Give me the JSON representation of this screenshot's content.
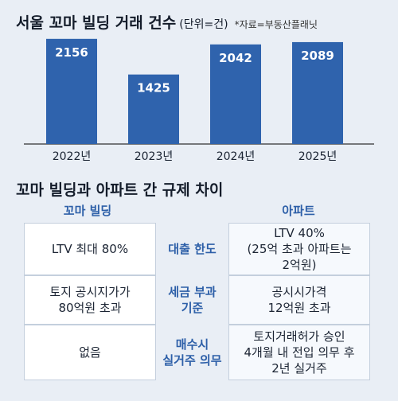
{
  "title": {
    "main": "서울 꼬마 빌딩 거래 건수",
    "unit": "(단위=건)",
    "source": "*자료=부동산플래닛"
  },
  "chart_data": {
    "type": "bar",
    "categories": [
      "2022년",
      "2023년",
      "2024년",
      "2025년"
    ],
    "values": [
      2156,
      1425,
      2042,
      2089
    ],
    "ylim": [
      0,
      2300
    ],
    "bar_color": "#2f63ad",
    "grid": false,
    "title": "서울 꼬마 빌딩 거래 건수",
    "xlabel": "",
    "ylabel": ""
  },
  "comparison": {
    "title": "꼬마 빌딩과 아파트 간 규제 차이",
    "left_header": "꼬마 빌딩",
    "right_header": "아파트",
    "rows": [
      {
        "label": "대출 한도",
        "left": "LTV 최대 80%",
        "right": "LTV 40%\n(25억 초과 아파트는\n2억원)"
      },
      {
        "label": "세금 부과\n기준",
        "left": "토지 공시지가가\n80억원 초과",
        "right": "공시시가격\n12억원 초과"
      },
      {
        "label": "매수시\n실거주 의무",
        "left": "없음",
        "right": "토지거래허가 승인\n4개월 내 전입 의무 후\n2년 실거주"
      }
    ]
  },
  "colors": {
    "accent": "#2d5fa8",
    "background": "#e9eef5"
  }
}
